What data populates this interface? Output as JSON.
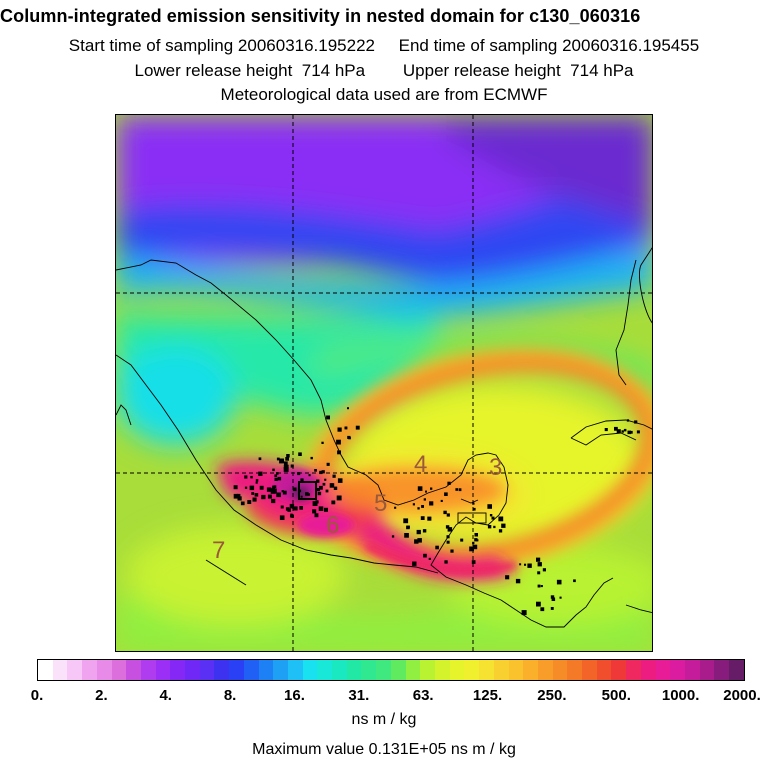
{
  "header": {
    "title": "Column-integrated emission sensitivity in nested domain for c130_060316",
    "sampling_line": "Start time of sampling 20060316.195222     End time of sampling 20060316.195455",
    "release_line": "Lower release height  714 hPa        Upper release height  714 hPa",
    "met_line": "Meteorological data used are from ECMWF"
  },
  "map": {
    "day_labels": [
      "7",
      "6",
      "5",
      "4",
      "3"
    ],
    "gridlines": "dashed",
    "projection": "lat-lon nested domain",
    "color_scale": "logarithmic"
  },
  "colorbar": {
    "tick_labels": [
      "0.",
      "2.",
      "4.",
      "8.",
      "16.",
      "31.",
      "63.",
      "125.",
      "250.",
      "500.",
      "1000.",
      "2000."
    ],
    "units": "ns m / kg",
    "colors": [
      "#ffffff",
      "#fbe2fb",
      "#f7c8f7",
      "#f0a4f0",
      "#e88ae8",
      "#dd6fdd",
      "#c850e0",
      "#b03cf0",
      "#9b2ff5",
      "#8628f5",
      "#6f28f5",
      "#5a30f5",
      "#3c32f0",
      "#2a40f5",
      "#2060f5",
      "#1e80f5",
      "#1ea0f5",
      "#1ec0f5",
      "#19e1f0",
      "#19e8d8",
      "#19e8c0",
      "#22e8a5",
      "#30e890",
      "#40e880",
      "#60ea60",
      "#90ef40",
      "#b8f230",
      "#d4f32c",
      "#e6f42c",
      "#f0f02e",
      "#f6e230",
      "#f8d030",
      "#fac22c",
      "#fab02a",
      "#f89c2a",
      "#f68c28",
      "#f47a28",
      "#f26428",
      "#f04e2c",
      "#ef3838",
      "#ef2860",
      "#ec1c80",
      "#e81c96",
      "#dc1ca0",
      "#c41c9a",
      "#a81c8c",
      "#881c7c",
      "#661c66"
    ]
  },
  "max_value_text": "Maximum value  0.131E+05 ns m / kg"
}
